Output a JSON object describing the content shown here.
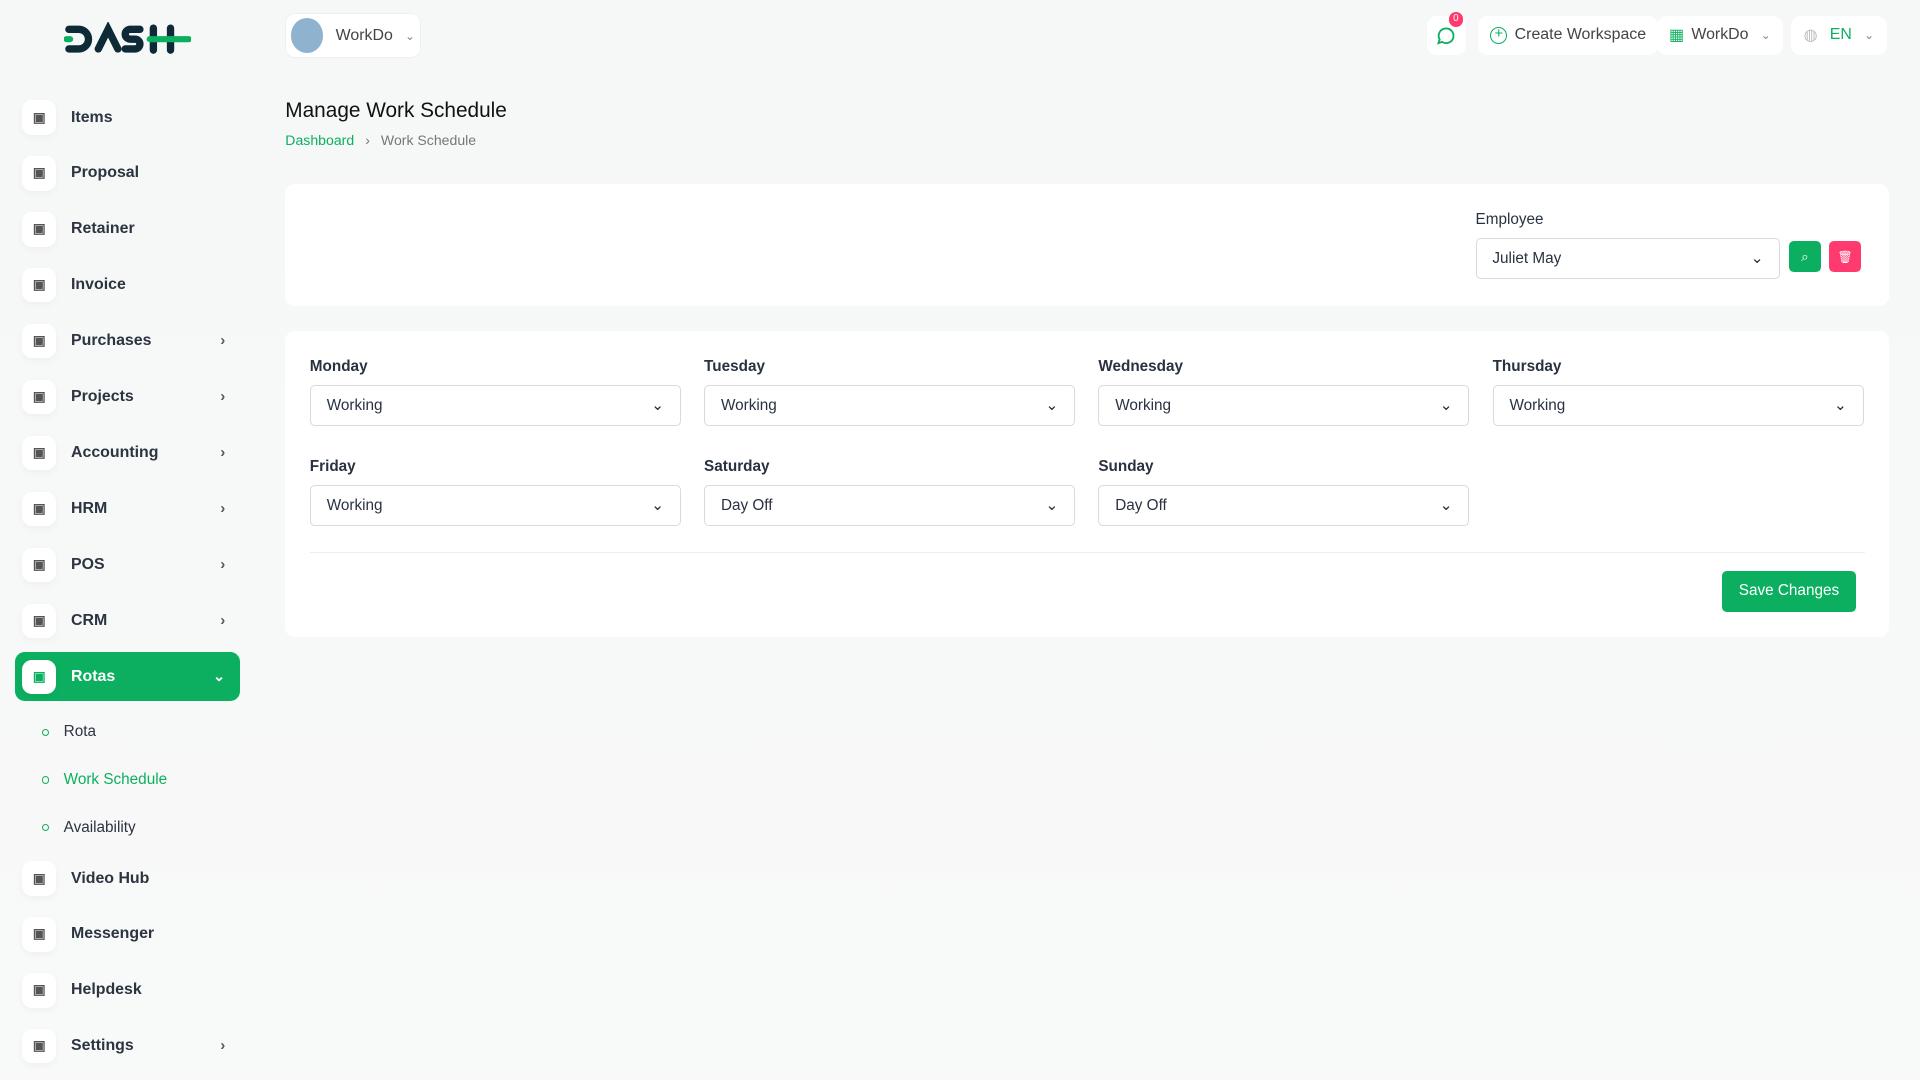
{
  "header": {
    "workspace": "WorkDo",
    "notifications_count": "0",
    "create_workspace": "Create Workspace",
    "workspace_menu": "WorkDo",
    "language": "EN"
  },
  "sidebar": {
    "items": [
      {
        "label": "Items"
      },
      {
        "label": "Proposal"
      },
      {
        "label": "Retainer"
      },
      {
        "label": "Invoice"
      },
      {
        "label": "Purchases"
      },
      {
        "label": "Projects"
      },
      {
        "label": "Accounting"
      },
      {
        "label": "HRM"
      },
      {
        "label": "POS"
      },
      {
        "label": "CRM"
      },
      {
        "label": "Rotas"
      }
    ],
    "sub_items": [
      {
        "label": "Rota"
      },
      {
        "label": "Work Schedule"
      },
      {
        "label": "Availability"
      }
    ],
    "bottom_items": [
      {
        "label": "Video Hub"
      },
      {
        "label": "Messenger"
      },
      {
        "label": "Helpdesk"
      },
      {
        "label": "Settings"
      }
    ]
  },
  "page": {
    "title": "Manage Work Schedule",
    "breadcrumb": [
      "Dashboard",
      "Work Schedule"
    ]
  },
  "filter": {
    "label": "Employee",
    "value": "Juliet May"
  },
  "schedule": [
    {
      "day": "Monday",
      "value": "Working"
    },
    {
      "day": "Tuesday",
      "value": "Working"
    },
    {
      "day": "Wednesday",
      "value": "Working"
    },
    {
      "day": "Thursday",
      "value": "Working"
    },
    {
      "day": "Friday",
      "value": "Working"
    },
    {
      "day": "Saturday",
      "value": "Day Off"
    },
    {
      "day": "Sunday",
      "value": "Day Off"
    }
  ],
  "save_label": "Save Changes",
  "colors": {
    "accent": "#0caf60",
    "danger": "#ff3a6e"
  }
}
